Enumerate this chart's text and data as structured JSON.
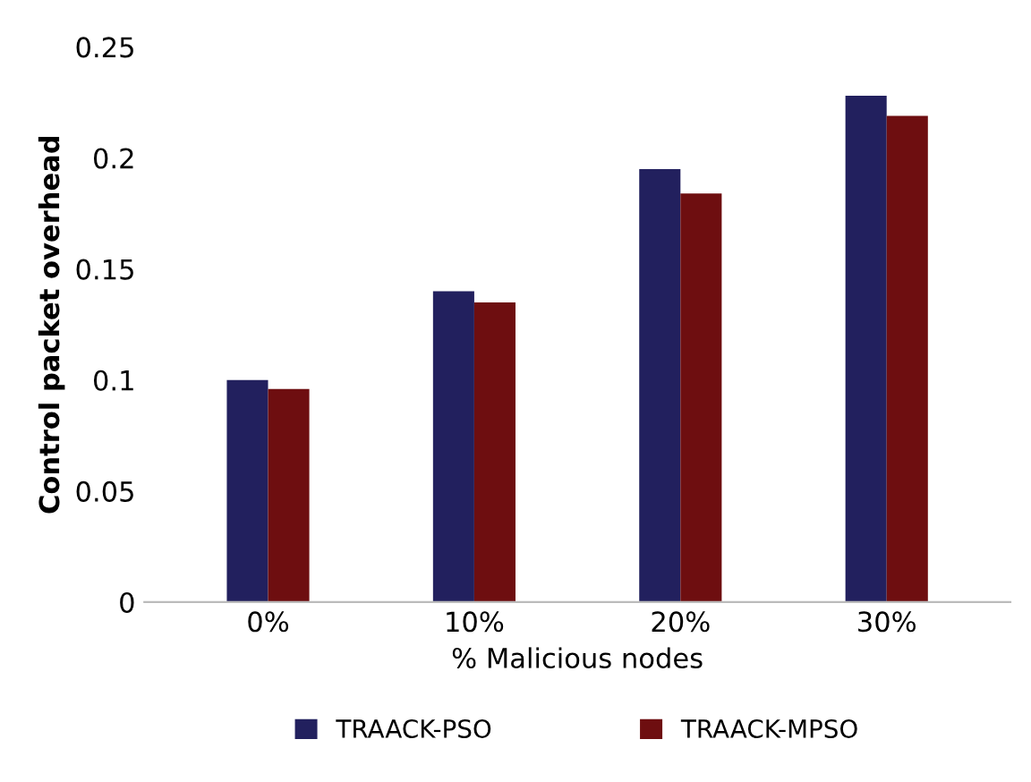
{
  "chart_data": {
    "type": "bar",
    "xlabel": "% Malicious nodes",
    "ylabel": "Control packet overhead",
    "categories": [
      "0%",
      "10%",
      "20%",
      "30%"
    ],
    "series": [
      {
        "name": "TRAACK-PSO",
        "color": "#22205e",
        "values": [
          0.1,
          0.14,
          0.195,
          0.228
        ]
      },
      {
        "name": "TRAACK-MPSO",
        "color": "#6e0e10",
        "values": [
          0.096,
          0.135,
          0.184,
          0.219
        ]
      }
    ],
    "ylim": [
      0,
      0.25
    ],
    "yticks": [
      0,
      0.05,
      0.1,
      0.15,
      0.2,
      0.25
    ],
    "grid": false,
    "legend": "bottom"
  }
}
